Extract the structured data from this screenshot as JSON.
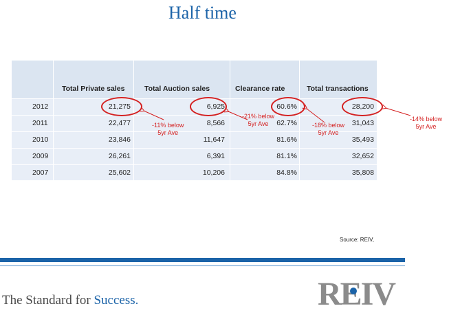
{
  "title": "Half time",
  "table": {
    "headers": [
      "",
      "Total Private sales",
      "Total Auction sales",
      "Clearance rate",
      "Total transactions"
    ],
    "rows": [
      [
        "2012",
        "21,275",
        "6,925",
        "60.6%",
        "28,200"
      ],
      [
        "2011",
        "22,477",
        "8,566",
        "62.7%",
        "31,043"
      ],
      [
        "2010",
        "23,846",
        "11,647",
        "81.6%",
        "35,493"
      ],
      [
        "2009",
        "26,261",
        "6,391",
        "81.1%",
        "32,652"
      ],
      [
        "2007",
        "25,602",
        "10,206",
        "84.8%",
        "35,808"
      ]
    ]
  },
  "annotations": {
    "private": "-11% below\n5yr Ave",
    "auction": "-21% below\n5yr Ave",
    "clearance": "-18% below\n5yr Ave",
    "transactions": "-14% below\n5yr Ave"
  },
  "source": "Source: REIV,",
  "footer": {
    "tagline_prefix": "The Standard for ",
    "tagline_emphasis": "Success.",
    "logo": "REIV"
  },
  "colors": {
    "brand_blue": "#1b63a8",
    "annotation_red": "#d42020",
    "logo_gray": "#8b8b8b"
  }
}
